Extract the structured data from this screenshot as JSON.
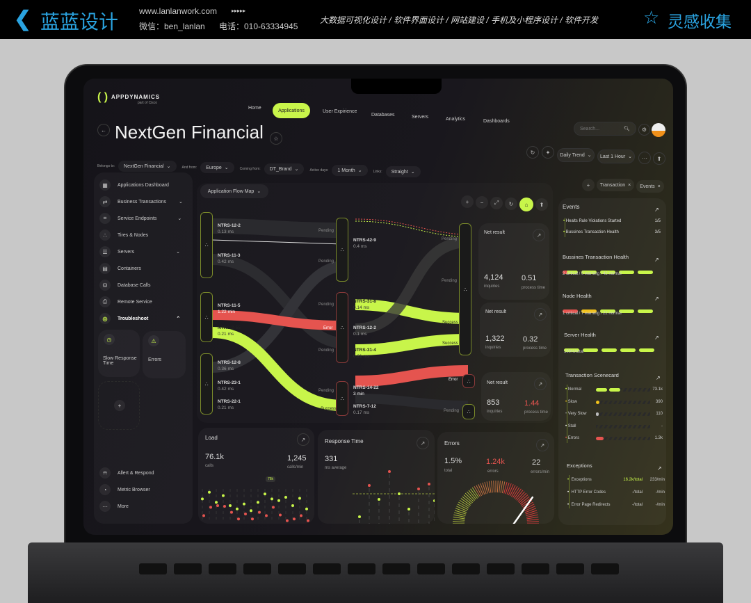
{
  "banner": {
    "brand": "蓝蓝设计",
    "url": "www.lanlanwork.com",
    "arrows": "▸▸▸▸▸",
    "wechat": "微信：ben_lanlan",
    "phone": "电话：010-63334945",
    "services": "大数据可视化设计 / 软件界面设计 / 网站建设 / 手机及小程序设计 / 软件开发",
    "collect": "灵感收集"
  },
  "app": {
    "logo": "APPDYNAMICS",
    "logo_sub": "part of Cisco",
    "nav": [
      "Home",
      "Applications",
      "User Expirience",
      "Databases",
      "Servers",
      "Analytics",
      "Dashboards"
    ],
    "active_nav": "Applications",
    "search_placeholder": "Search...",
    "title": "NextGen Financial",
    "filters": [
      {
        "label": "Belongs to:",
        "value": "NextGen Financial"
      },
      {
        "label": "And from:",
        "value": "Europe"
      },
      {
        "label": "Coming from:",
        "value": "DT_Brand"
      },
      {
        "label": "Active days:",
        "value": "1 Month"
      },
      {
        "label": "Links:",
        "value": "Straight"
      }
    ],
    "toolbar": {
      "trend": "Daily Trend",
      "range": "Last 1 Hour",
      "more": "···"
    },
    "tags": [
      "Transaction",
      "Events"
    ],
    "accent": "#c8f54a",
    "error_color": "#e5544f",
    "warning_color": "#f2c21b"
  },
  "sidebar": {
    "items": [
      {
        "label": "Applications Dashboard",
        "icon": "grid-icon"
      },
      {
        "label": "Business Transactions",
        "icon": "transactions-icon",
        "chevron": true
      },
      {
        "label": "Service Endpoints",
        "icon": "endpoint-icon",
        "chevron": true
      },
      {
        "label": "Tires & Nodes",
        "icon": "nodes-icon"
      },
      {
        "label": "Servers",
        "icon": "server-icon",
        "chevron": true
      },
      {
        "label": "Containers",
        "icon": "container-icon"
      },
      {
        "label": "Database Calls",
        "icon": "database-icon"
      },
      {
        "label": "Remote Service",
        "icon": "remote-icon"
      },
      {
        "label": "Troubleshoot",
        "icon": "troubleshoot-icon",
        "expanded": true
      }
    ],
    "troubleshoot": [
      "Slow Response Time",
      "Errors"
    ],
    "bottom": [
      "Allert & Respond",
      "Metric Browser",
      "More"
    ]
  },
  "flowmap": {
    "title": "Application Flow Map",
    "nodes": [
      {
        "name": "NTRS-12-2",
        "value": "0.13 ms"
      },
      {
        "name": "NTRS-11-3",
        "value": "0.42 ms"
      },
      {
        "name": "NTRS-11-5",
        "value": "1.22 min"
      },
      {
        "name": "NTRS-2-55",
        "value": "0.21 ms"
      },
      {
        "name": "NTRS-12-8",
        "value": "0.36 ms"
      },
      {
        "name": "NTRS-23-1",
        "value": "0.42 ms"
      },
      {
        "name": "NTRS-22-1",
        "value": "0.21 ms"
      },
      {
        "name": "NTRS-42-9",
        "value": "0.4 ms"
      },
      {
        "name": "NTRS-31-8",
        "value": "0.14 ms"
      },
      {
        "name": "NTRS-12-2",
        "value": "0.1 ms"
      },
      {
        "name": "NTRS-31-4",
        "value": "0.21 ms"
      },
      {
        "name": "NTRS-14-22",
        "value": "3 min"
      },
      {
        "name": "NTRS-7-12",
        "value": "0.17 ms"
      }
    ],
    "statuses": {
      "pending": "Pending",
      "error": "Error",
      "success": "Success"
    },
    "net_results": [
      {
        "title": "Net result",
        "inquiries": "4,124",
        "inquiries_label": "inquiries",
        "process": "0.51",
        "process_label": "process time"
      },
      {
        "title": "Net result",
        "inquiries": "1,322",
        "inquiries_label": "inquiries",
        "process": "0.32",
        "process_label": "process time"
      },
      {
        "title": "Net result",
        "inquiries": "853",
        "inquiries_label": "inquiries",
        "process": "1.44",
        "process_label": "process time"
      }
    ]
  },
  "load": {
    "title": "Load",
    "calls": "76.1k",
    "calls_label": "calls",
    "rate": "1,245",
    "rate_label": "calls/min",
    "tooltip": "76k"
  },
  "response": {
    "title": "Response Time",
    "value": "331",
    "label": "ms average"
  },
  "errors": {
    "title": "Errors",
    "total": "1.5%",
    "total_label": "total",
    "errors": "1.24k",
    "errors_label": "errors",
    "rate": "22",
    "rate_label": "errors/min",
    "gauge": 0.8
  },
  "events": {
    "title": "Events",
    "items": [
      {
        "label": "Healts Rule Violations Started",
        "value": "1/5"
      },
      {
        "label": "Bussines Transaction Health",
        "value": "3/5"
      }
    ]
  },
  "bt_health": {
    "title": "Bussines Transaction Health",
    "summary": "2 critical / 0 warning / 42 normal"
  },
  "node_health": {
    "title": "Node Health",
    "summary": "1 critical / 7 warning / 22 normal"
  },
  "server_health": {
    "title": "Server Health",
    "summary": "100%/total"
  },
  "scorecard": {
    "title": "Transaction Scenecard",
    "rows": [
      {
        "label": "Normal",
        "value": "73.1k"
      },
      {
        "label": "Slow",
        "value": "390"
      },
      {
        "label": "Very Slow",
        "value": "110"
      },
      {
        "label": "Stall",
        "value": "-"
      },
      {
        "label": "Errors",
        "value": "1.3k"
      }
    ]
  },
  "exceptions": {
    "title": "Exceptions",
    "rows": [
      {
        "label": "Exceptions",
        "total": "16.2k/total",
        "rate": "233/min"
      },
      {
        "label": "HTTP Error Codes",
        "total": "-/total",
        "rate": "-/min"
      },
      {
        "label": "Error Page Redirects",
        "total": "-/total",
        "rate": "-/min"
      }
    ]
  }
}
